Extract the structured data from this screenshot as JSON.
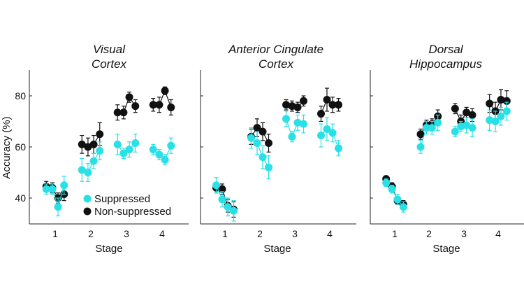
{
  "colors": {
    "suppressed": "#29e0e6",
    "non_suppressed": "#111111",
    "axis": "#222222"
  },
  "ylabel": "Accuracy (%)",
  "legend": {
    "suppressed": "Suppressed",
    "non_suppressed": "Non-suppressed"
  },
  "chart_data": [
    {
      "type": "scatter",
      "title_line1": "Visual",
      "title_line2": "Cortex",
      "xlabel": "Stage",
      "ylabel": "Accuracy (%)",
      "ylim": [
        30,
        90
      ],
      "yticks": [
        40,
        60,
        80
      ],
      "xticks": [
        1,
        2,
        3,
        4
      ],
      "series": [
        {
          "name": "Suppressed",
          "x": [
            0.75,
            0.92,
            1.08,
            1.25,
            1.75,
            1.92,
            2.08,
            2.25,
            2.75,
            2.92,
            3.08,
            3.25,
            3.75,
            3.92,
            4.08,
            4.25
          ],
          "y": [
            43.5,
            43.5,
            36.5,
            45,
            51,
            50,
            54.5,
            58.5,
            61,
            57.5,
            59,
            61.5,
            59,
            57,
            55,
            60.5
          ],
          "err": [
            2,
            2,
            3.5,
            3.5,
            4.5,
            3.5,
            3,
            3.5,
            4,
            2,
            3,
            3.5,
            2,
            2,
            2,
            3
          ]
        },
        {
          "name": "Non-suppressed",
          "x": [
            0.75,
            0.92,
            1.08,
            1.25,
            1.75,
            1.92,
            2.08,
            2.25,
            2.75,
            2.92,
            3.08,
            3.25,
            3.75,
            3.92,
            4.08,
            4.25
          ],
          "y": [
            44.5,
            44,
            40,
            41.5,
            61,
            60,
            61,
            65,
            73.5,
            73.5,
            79.5,
            76,
            76.5,
            76.5,
            82,
            75.5
          ],
          "err": [
            2,
            2,
            2,
            2.5,
            3.5,
            3.5,
            3.5,
            4.5,
            3,
            2.5,
            2,
            2.5,
            2.5,
            3,
            1.5,
            3
          ]
        }
      ]
    },
    {
      "type": "scatter",
      "title_line1": "Anterior Cingulate",
      "title_line2": "Cortex",
      "xlabel": "Stage",
      "ylim": [
        30,
        90
      ],
      "yticks": [
        40,
        60,
        80
      ],
      "xticks": [
        1,
        2,
        3,
        4
      ],
      "series": [
        {
          "name": "Suppressed",
          "x": [
            0.75,
            0.92,
            1.08,
            1.25,
            1.75,
            1.92,
            2.08,
            2.25,
            2.75,
            2.92,
            3.08,
            3.25,
            3.75,
            3.92,
            4.08,
            4.25
          ],
          "y": [
            45,
            39.5,
            36.5,
            35,
            63.5,
            61.5,
            56,
            52,
            71,
            64,
            69.5,
            69,
            64.5,
            67,
            65.5,
            59.5
          ],
          "err": [
            3,
            3,
            3.5,
            4,
            4,
            4.5,
            4.5,
            4.5,
            3,
            2,
            3,
            3.5,
            4.5,
            4.5,
            3.5,
            3
          ]
        },
        {
          "name": "Non-suppressed",
          "x": [
            0.75,
            0.92,
            1.08,
            1.25,
            1.75,
            1.92,
            2.08,
            2.25,
            2.75,
            2.92,
            3.08,
            3.25,
            3.75,
            3.92,
            4.08,
            4.25
          ],
          "y": [
            44,
            43.5,
            37,
            35.5,
            64,
            67.5,
            66,
            61.5,
            76.5,
            76,
            75.5,
            78,
            73,
            78.5,
            76.5,
            76.5
          ],
          "err": [
            2,
            2,
            2.5,
            3,
            3,
            3.5,
            3.5,
            3.5,
            2,
            2,
            2,
            2,
            3,
            4.5,
            3,
            2.5
          ]
        }
      ]
    },
    {
      "type": "scatter",
      "title_line1": "Dorsal",
      "title_line2": "Hippocampus",
      "xlabel": "Stage",
      "ylim": [
        30,
        90
      ],
      "yticks": [
        40,
        60,
        80
      ],
      "xticks": [
        1,
        2,
        3,
        4
      ],
      "series": [
        {
          "name": "Suppressed",
          "x": [
            0.75,
            0.92,
            1.08,
            1.25,
            1.75,
            1.92,
            2.08,
            2.25,
            2.75,
            2.92,
            3.08,
            3.25,
            3.75,
            3.92,
            4.08,
            4.25
          ],
          "y": [
            46,
            43.5,
            39.5,
            36.5,
            60,
            67.5,
            67.5,
            69.5,
            66,
            68,
            68.5,
            67.5,
            70.5,
            70,
            72,
            74
          ],
          "err": [
            1.5,
            1.5,
            2,
            2,
            2.5,
            2.5,
            2.5,
            3,
            2,
            2,
            3,
            3.5,
            4,
            4,
            3.5,
            3.5
          ]
        },
        {
          "name": "Non-suppressed",
          "x": [
            0.75,
            0.92,
            1.08,
            1.25,
            1.75,
            1.92,
            2.08,
            2.25,
            2.75,
            2.92,
            3.08,
            3.25,
            3.75,
            3.92,
            4.08,
            4.25
          ],
          "y": [
            47.5,
            44.5,
            39,
            37.5,
            65,
            68.5,
            69,
            72,
            75,
            70,
            73.5,
            72.5,
            77,
            74,
            78.5,
            78
          ],
          "err": [
            1,
            1.5,
            1.5,
            1.5,
            2,
            2,
            2,
            2.5,
            2,
            2.5,
            2,
            2.5,
            3.5,
            3.5,
            4,
            4
          ]
        }
      ]
    }
  ]
}
